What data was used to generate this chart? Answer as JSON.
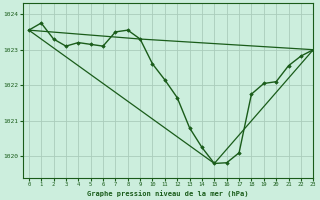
{
  "title": "Graphe pression niveau de la mer (hPa)",
  "bg_color": "#cceedd",
  "grid_color": "#aaccbb",
  "line_color": "#1a5c1a",
  "marker_color": "#1a5c1a",
  "xlim": [
    -0.5,
    23
  ],
  "ylim": [
    1019.4,
    1024.3
  ],
  "yticks": [
    1020,
    1021,
    1022,
    1023,
    1024
  ],
  "xticks": [
    0,
    1,
    2,
    3,
    4,
    5,
    6,
    7,
    8,
    9,
    10,
    11,
    12,
    13,
    14,
    15,
    16,
    17,
    18,
    19,
    20,
    21,
    22,
    23
  ],
  "series": [
    {
      "x": [
        0,
        1,
        2,
        3,
        4,
        5,
        6,
        7,
        8,
        9,
        10,
        11,
        12,
        13,
        14,
        15,
        16,
        17,
        18,
        19,
        20,
        21,
        22,
        23
      ],
      "y": [
        1023.55,
        1023.75,
        1023.3,
        1023.1,
        1023.2,
        1023.15,
        1023.1,
        1023.5,
        1023.55,
        1023.3,
        1022.6,
        1022.15,
        1021.65,
        1020.8,
        1020.25,
        1019.8,
        1019.82,
        1020.1,
        1021.75,
        1022.05,
        1022.1,
        1022.55,
        1022.82,
        1023.0
      ],
      "with_markers": true,
      "lw": 1.0
    },
    {
      "x": [
        0,
        9,
        23
      ],
      "y": [
        1023.55,
        1023.3,
        1023.0
      ],
      "with_markers": false,
      "lw": 0.9
    },
    {
      "x": [
        0,
        15,
        23
      ],
      "y": [
        1023.55,
        1019.8,
        1023.0
      ],
      "with_markers": false,
      "lw": 0.9
    }
  ]
}
